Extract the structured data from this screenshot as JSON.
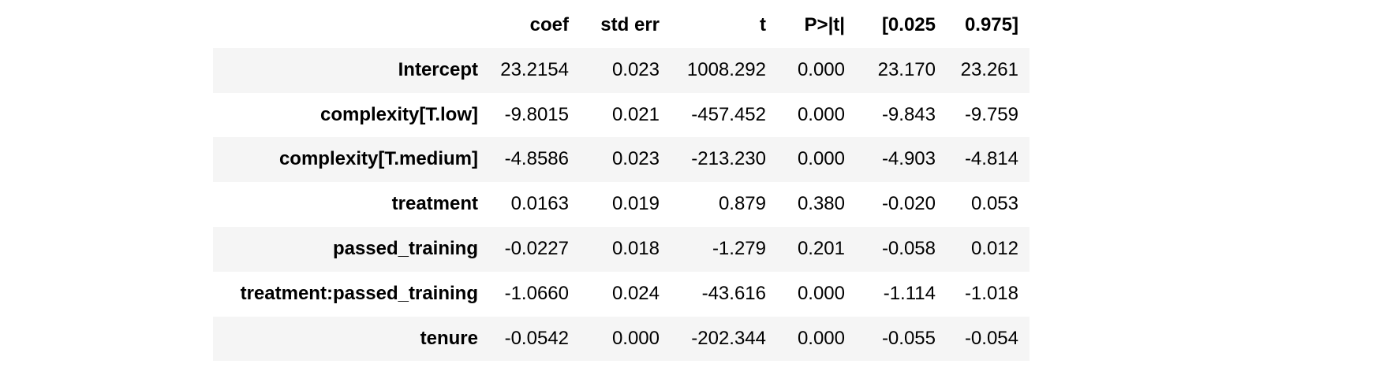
{
  "chart_data": {
    "type": "table",
    "title": "",
    "columns": [
      "coef",
      "std err",
      "t",
      "P>|t|",
      "[0.025",
      "0.975]"
    ],
    "rows": [
      {
        "label": "Intercept",
        "values": [
          "23.2154",
          "0.023",
          "1008.292",
          "0.000",
          "23.170",
          "23.261"
        ]
      },
      {
        "label": "complexity[T.low]",
        "values": [
          "-9.8015",
          "0.021",
          "-457.452",
          "0.000",
          "-9.843",
          "-9.759"
        ]
      },
      {
        "label": "complexity[T.medium]",
        "values": [
          "-4.8586",
          "0.023",
          "-213.230",
          "0.000",
          "-4.903",
          "-4.814"
        ]
      },
      {
        "label": "treatment",
        "values": [
          "0.0163",
          "0.019",
          "0.879",
          "0.380",
          "-0.020",
          "0.053"
        ]
      },
      {
        "label": "passed_training",
        "values": [
          "-0.0227",
          "0.018",
          "-1.279",
          "0.201",
          "-0.058",
          "0.012"
        ]
      },
      {
        "label": "treatment:passed_training",
        "values": [
          "-1.0660",
          "0.024",
          "-43.616",
          "0.000",
          "-1.114",
          "-1.018"
        ]
      },
      {
        "label": "tenure",
        "values": [
          "-0.0542",
          "0.000",
          "-202.344",
          "0.000",
          "-0.055",
          "-0.054"
        ]
      }
    ],
    "layout": {
      "header_row": true,
      "row_striping": "odd-rows-shaded",
      "alignment": "right"
    },
    "styles": {
      "stripe_color": "#f5f5f5",
      "text_color": "#000000",
      "background": "#ffffff"
    }
  }
}
